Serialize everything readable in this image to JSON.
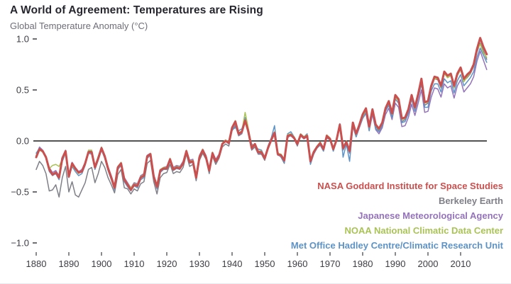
{
  "colors": {
    "background": "#ffffff",
    "title_text": "#26262e",
    "subtitle_text": "#6e6e78",
    "axis_text": "#3d3d44",
    "zero_line": "#1a1a1a",
    "nasa_red": "#c9504e",
    "berkeley_gray": "#7f7f88",
    "jma_purple": "#9473bb",
    "noaa_green": "#a9c355",
    "metoffice_blue": "#5e93c6"
  },
  "chart_data": {
    "type": "line",
    "title": "A World of Agreement: Temperatures are Rising",
    "ylabel": "Global Temperature Anomaly (°C)",
    "xlabel": "",
    "grid": false,
    "legend_position": "bottom-right",
    "xlim": [
      1880,
      2018
    ],
    "ylim": [
      -1.0,
      1.0
    ],
    "x_start": 1880,
    "x_ticks": [
      1880,
      1890,
      1900,
      1910,
      1920,
      1930,
      1940,
      1950,
      1960,
      1970,
      1980,
      1990,
      2000,
      2010
    ],
    "y_ticks": [
      {
        "label": "1.0",
        "value": 1.0
      },
      {
        "label": "0.5",
        "value": 0.5
      },
      {
        "label": "0.0",
        "value": 0.0
      },
      {
        "label": "−0.5",
        "value": -0.5
      },
      {
        "label": "−1.0",
        "value": -1.0
      }
    ],
    "axis": {
      "zero_line_color": "#1a1a1a",
      "tick_color": "#3d3d44"
    },
    "draw_order": [
      1,
      2,
      4,
      3,
      0
    ],
    "series": [
      {
        "id": "nasa-gistemp",
        "name": "NASA Goddard Institute for Space Studies",
        "color": "#c9504e",
        "line_width": 3,
        "values": [
          -0.16,
          -0.08,
          -0.1,
          -0.16,
          -0.28,
          -0.33,
          -0.31,
          -0.36,
          -0.17,
          -0.1,
          -0.35,
          -0.22,
          -0.27,
          -0.31,
          -0.3,
          -0.22,
          -0.11,
          -0.11,
          -0.26,
          -0.17,
          -0.07,
          -0.15,
          -0.27,
          -0.36,
          -0.46,
          -0.26,
          -0.22,
          -0.38,
          -0.43,
          -0.48,
          -0.43,
          -0.44,
          -0.36,
          -0.34,
          -0.15,
          -0.13,
          -0.35,
          -0.45,
          -0.29,
          -0.27,
          -0.27,
          -0.18,
          -0.28,
          -0.26,
          -0.27,
          -0.22,
          -0.1,
          -0.21,
          -0.2,
          -0.36,
          -0.16,
          -0.09,
          -0.16,
          -0.29,
          -0.12,
          -0.2,
          -0.15,
          -0.03,
          0.0,
          -0.02,
          0.13,
          0.19,
          0.07,
          0.09,
          0.2,
          0.09,
          -0.07,
          -0.03,
          -0.11,
          -0.11,
          -0.17,
          -0.07,
          0.01,
          0.08,
          -0.13,
          -0.14,
          -0.19,
          0.05,
          0.06,
          0.03,
          -0.03,
          0.06,
          0.03,
          0.05,
          -0.2,
          -0.11,
          -0.06,
          -0.02,
          -0.08,
          0.05,
          0.02,
          -0.08,
          0.01,
          0.16,
          -0.07,
          -0.01,
          -0.1,
          0.18,
          0.07,
          0.16,
          0.26,
          0.32,
          0.14,
          0.31,
          0.16,
          0.12,
          0.18,
          0.32,
          0.39,
          0.27,
          0.45,
          0.41,
          0.22,
          0.23,
          0.31,
          0.45,
          0.33,
          0.46,
          0.61,
          0.38,
          0.39,
          0.54,
          0.63,
          0.62,
          0.54,
          0.68,
          0.64,
          0.66,
          0.54,
          0.66,
          0.72,
          0.61,
          0.65,
          0.68,
          0.75,
          0.9,
          1.01,
          0.92,
          0.85
        ]
      },
      {
        "id": "berkeley-earth",
        "name": "Berkeley Earth",
        "color": "#7f7f88",
        "line_width": 1.5,
        "values": [
          -0.28,
          -0.2,
          -0.24,
          -0.32,
          -0.49,
          -0.48,
          -0.43,
          -0.55,
          -0.36,
          -0.25,
          -0.5,
          -0.4,
          -0.53,
          -0.55,
          -0.48,
          -0.41,
          -0.28,
          -0.26,
          -0.41,
          -0.32,
          -0.2,
          -0.26,
          -0.36,
          -0.43,
          -0.51,
          -0.33,
          -0.28,
          -0.46,
          -0.47,
          -0.52,
          -0.47,
          -0.49,
          -0.42,
          -0.4,
          -0.22,
          -0.19,
          -0.4,
          -0.52,
          -0.36,
          -0.32,
          -0.31,
          -0.23,
          -0.32,
          -0.3,
          -0.31,
          -0.26,
          -0.13,
          -0.25,
          -0.23,
          -0.39,
          -0.19,
          -0.12,
          -0.18,
          -0.32,
          -0.15,
          -0.23,
          -0.17,
          -0.06,
          -0.03,
          -0.05,
          0.1,
          0.15,
          0.05,
          0.07,
          0.21,
          0.06,
          -0.09,
          -0.06,
          -0.13,
          -0.13,
          -0.19,
          -0.08,
          0.0,
          0.08,
          -0.13,
          -0.16,
          -0.22,
          0.03,
          0.06,
          0.02,
          -0.05,
          0.05,
          0.02,
          0.05,
          -0.22,
          -0.13,
          -0.07,
          -0.04,
          -0.1,
          0.03,
          0.01,
          -0.1,
          0.0,
          0.15,
          -0.09,
          -0.02,
          -0.12,
          0.16,
          0.05,
          0.14,
          0.24,
          0.3,
          0.11,
          0.29,
          0.14,
          0.1,
          0.16,
          0.3,
          0.37,
          0.25,
          0.43,
          0.39,
          0.19,
          0.21,
          0.29,
          0.43,
          0.31,
          0.44,
          0.58,
          0.35,
          0.37,
          0.52,
          0.61,
          0.6,
          0.52,
          0.67,
          0.62,
          0.64,
          0.52,
          0.64,
          0.7,
          0.59,
          0.62,
          0.66,
          0.73,
          0.87,
          0.96,
          0.88,
          0.8
        ]
      },
      {
        "id": "jma",
        "name": "Japanese Meteorological Agency",
        "color": "#9473bb",
        "line_width": 1.5,
        "values": [
          -0.14,
          -0.06,
          -0.09,
          -0.15,
          -0.26,
          -0.31,
          -0.29,
          -0.34,
          -0.16,
          -0.09,
          -0.33,
          -0.21,
          -0.26,
          -0.3,
          -0.28,
          -0.21,
          -0.1,
          -0.1,
          -0.24,
          -0.16,
          -0.06,
          -0.14,
          -0.25,
          -0.34,
          -0.44,
          -0.25,
          -0.21,
          -0.36,
          -0.41,
          -0.46,
          -0.41,
          -0.42,
          -0.34,
          -0.32,
          -0.14,
          -0.12,
          -0.33,
          -0.43,
          -0.28,
          -0.26,
          -0.25,
          -0.17,
          -0.26,
          -0.24,
          -0.25,
          -0.2,
          -0.09,
          -0.19,
          -0.18,
          -0.34,
          -0.14,
          -0.08,
          -0.14,
          -0.27,
          -0.11,
          -0.18,
          -0.13,
          -0.02,
          0.01,
          -0.01,
          0.12,
          0.17,
          0.06,
          0.08,
          0.19,
          0.08,
          -0.08,
          -0.04,
          -0.12,
          -0.12,
          -0.18,
          -0.08,
          0.0,
          0.07,
          -0.14,
          -0.15,
          -0.2,
          0.04,
          0.05,
          0.02,
          -0.04,
          0.05,
          0.02,
          0.04,
          -0.21,
          -0.12,
          -0.07,
          -0.03,
          -0.09,
          0.04,
          0.01,
          -0.09,
          0.0,
          0.14,
          -0.08,
          -0.02,
          -0.11,
          0.15,
          0.04,
          0.13,
          0.22,
          0.27,
          0.1,
          0.26,
          0.11,
          0.07,
          0.13,
          0.26,
          0.32,
          0.21,
          0.37,
          0.33,
          0.14,
          0.15,
          0.23,
          0.36,
          0.25,
          0.37,
          0.5,
          0.28,
          0.29,
          0.43,
          0.52,
          0.51,
          0.43,
          0.56,
          0.52,
          0.54,
          0.42,
          0.54,
          0.6,
          0.48,
          0.52,
          0.56,
          0.63,
          0.78,
          0.88,
          0.79,
          0.7
        ]
      },
      {
        "id": "noaa",
        "name": "NOAA National Climatic Data Center",
        "color": "#a9c355",
        "line_width": 1.5,
        "values": [
          -0.14,
          -0.09,
          -0.11,
          -0.17,
          -0.27,
          -0.24,
          -0.23,
          -0.25,
          -0.18,
          -0.12,
          -0.33,
          -0.24,
          -0.28,
          -0.32,
          -0.29,
          -0.23,
          -0.09,
          -0.09,
          -0.25,
          -0.15,
          -0.06,
          -0.14,
          -0.26,
          -0.35,
          -0.44,
          -0.25,
          -0.21,
          -0.37,
          -0.42,
          -0.46,
          -0.42,
          -0.43,
          -0.35,
          -0.33,
          -0.16,
          -0.12,
          -0.34,
          -0.43,
          -0.28,
          -0.26,
          -0.26,
          -0.17,
          -0.27,
          -0.25,
          -0.26,
          -0.21,
          -0.09,
          -0.2,
          -0.19,
          -0.35,
          -0.15,
          -0.08,
          -0.15,
          -0.28,
          -0.11,
          -0.19,
          -0.14,
          -0.02,
          0.01,
          -0.01,
          0.14,
          0.2,
          0.08,
          0.1,
          0.28,
          0.12,
          -0.05,
          -0.03,
          -0.1,
          -0.1,
          -0.16,
          -0.06,
          0.02,
          0.09,
          -0.12,
          -0.13,
          -0.18,
          0.06,
          0.07,
          0.04,
          -0.02,
          0.07,
          0.04,
          0.06,
          -0.19,
          -0.1,
          -0.05,
          -0.01,
          -0.07,
          0.06,
          0.03,
          -0.07,
          0.02,
          0.15,
          -0.06,
          0.0,
          -0.09,
          0.17,
          0.06,
          0.15,
          0.24,
          0.3,
          0.13,
          0.29,
          0.15,
          0.11,
          0.17,
          0.31,
          0.38,
          0.26,
          0.43,
          0.39,
          0.21,
          0.22,
          0.3,
          0.44,
          0.32,
          0.45,
          0.6,
          0.37,
          0.38,
          0.53,
          0.61,
          0.61,
          0.53,
          0.66,
          0.62,
          0.64,
          0.52,
          0.64,
          0.7,
          0.58,
          0.63,
          0.67,
          0.74,
          0.89,
          0.95,
          0.86,
          0.82
        ]
      },
      {
        "id": "hadcrut",
        "name": "Met Office Hadley Centre/Climatic Research Unit",
        "color": "#5e93c6",
        "line_width": 1.5,
        "values": [
          -0.12,
          -0.07,
          -0.1,
          -0.16,
          -0.3,
          -0.34,
          -0.32,
          -0.38,
          -0.2,
          -0.12,
          -0.36,
          -0.25,
          -0.3,
          -0.34,
          -0.32,
          -0.24,
          -0.12,
          -0.13,
          -0.28,
          -0.19,
          -0.09,
          -0.17,
          -0.29,
          -0.38,
          -0.48,
          -0.28,
          -0.24,
          -0.4,
          -0.45,
          -0.49,
          -0.44,
          -0.46,
          -0.38,
          -0.36,
          -0.17,
          -0.14,
          -0.37,
          -0.47,
          -0.31,
          -0.28,
          -0.28,
          -0.2,
          -0.29,
          -0.27,
          -0.28,
          -0.23,
          -0.11,
          -0.22,
          -0.21,
          -0.37,
          -0.16,
          -0.1,
          -0.17,
          -0.3,
          -0.13,
          -0.21,
          -0.16,
          -0.04,
          0.0,
          -0.03,
          0.11,
          0.13,
          0.1,
          0.12,
          0.23,
          0.1,
          -0.03,
          -0.05,
          -0.08,
          -0.09,
          -0.16,
          -0.05,
          0.03,
          0.15,
          -0.11,
          -0.16,
          -0.21,
          0.07,
          0.09,
          0.04,
          -0.04,
          0.07,
          0.04,
          0.07,
          -0.23,
          -0.13,
          -0.07,
          -0.04,
          -0.1,
          0.05,
          0.02,
          -0.1,
          0.0,
          0.17,
          -0.16,
          -0.03,
          -0.2,
          0.14,
          0.04,
          0.14,
          0.22,
          0.28,
          0.1,
          0.28,
          0.12,
          0.09,
          0.15,
          0.29,
          0.35,
          0.23,
          0.41,
          0.37,
          0.18,
          0.19,
          0.27,
          0.41,
          0.29,
          0.42,
          0.56,
          0.33,
          0.33,
          0.49,
          0.56,
          0.56,
          0.48,
          0.61,
          0.57,
          0.59,
          0.47,
          0.59,
          0.65,
          0.54,
          0.58,
          0.62,
          0.68,
          0.82,
          0.91,
          0.84,
          0.77
        ]
      }
    ]
  }
}
